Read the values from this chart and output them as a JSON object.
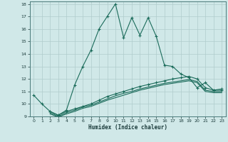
{
  "xlabel": "Humidex (Indice chaleur)",
  "xlim": [
    -0.5,
    23.5
  ],
  "ylim": [
    9,
    18.2
  ],
  "yticks": [
    9,
    10,
    11,
    12,
    13,
    14,
    15,
    16,
    17,
    18
  ],
  "xticks": [
    0,
    1,
    2,
    3,
    4,
    5,
    6,
    7,
    8,
    9,
    10,
    11,
    12,
    13,
    14,
    15,
    16,
    17,
    18,
    19,
    20,
    21,
    22,
    23
  ],
  "bg_color": "#d0e8e8",
  "grid_color": "#b0cccc",
  "line_color": "#1a6b5a",
  "lines": [
    {
      "x": [
        0,
        1,
        2,
        3,
        4,
        5,
        6,
        7,
        8,
        9,
        10,
        11,
        12,
        13,
        14,
        15,
        16,
        17,
        18,
        19,
        20,
        21,
        22,
        23
      ],
      "y": [
        10.7,
        10.0,
        9.4,
        9.1,
        9.5,
        11.5,
        13.0,
        14.3,
        16.0,
        17.0,
        18.0,
        15.3,
        16.9,
        15.5,
        16.9,
        15.4,
        13.1,
        13.0,
        12.4,
        12.1,
        11.3,
        11.7,
        11.1,
        11.2
      ],
      "marker": true
    },
    {
      "x": [
        2,
        3,
        4,
        5,
        6,
        7,
        8,
        9,
        10,
        11,
        12,
        13,
        14,
        15,
        16,
        17,
        18,
        19,
        20,
        21,
        22,
        23
      ],
      "y": [
        9.4,
        9.1,
        9.4,
        9.6,
        9.8,
        10.0,
        10.3,
        10.6,
        10.8,
        11.0,
        11.2,
        11.4,
        11.55,
        11.7,
        11.85,
        12.0,
        12.1,
        12.2,
        12.0,
        11.3,
        11.1,
        11.1
      ],
      "marker": true
    },
    {
      "x": [
        2,
        3,
        4,
        5,
        6,
        7,
        8,
        9,
        10,
        11,
        12,
        13,
        14,
        15,
        16,
        17,
        18,
        19,
        20,
        21,
        22,
        23
      ],
      "y": [
        9.3,
        9.0,
        9.3,
        9.5,
        9.75,
        9.9,
        10.15,
        10.4,
        10.65,
        10.85,
        11.0,
        11.2,
        11.35,
        11.5,
        11.65,
        11.75,
        11.85,
        11.95,
        11.8,
        11.1,
        11.0,
        11.0
      ],
      "marker": false
    },
    {
      "x": [
        2,
        3,
        4,
        5,
        6,
        7,
        8,
        9,
        10,
        11,
        12,
        13,
        14,
        15,
        16,
        17,
        18,
        19,
        20,
        21,
        22,
        23
      ],
      "y": [
        9.2,
        8.95,
        9.2,
        9.4,
        9.65,
        9.8,
        10.05,
        10.3,
        10.5,
        10.7,
        10.9,
        11.1,
        11.25,
        11.4,
        11.55,
        11.65,
        11.75,
        11.85,
        11.7,
        11.0,
        10.9,
        10.9
      ],
      "marker": false
    }
  ]
}
